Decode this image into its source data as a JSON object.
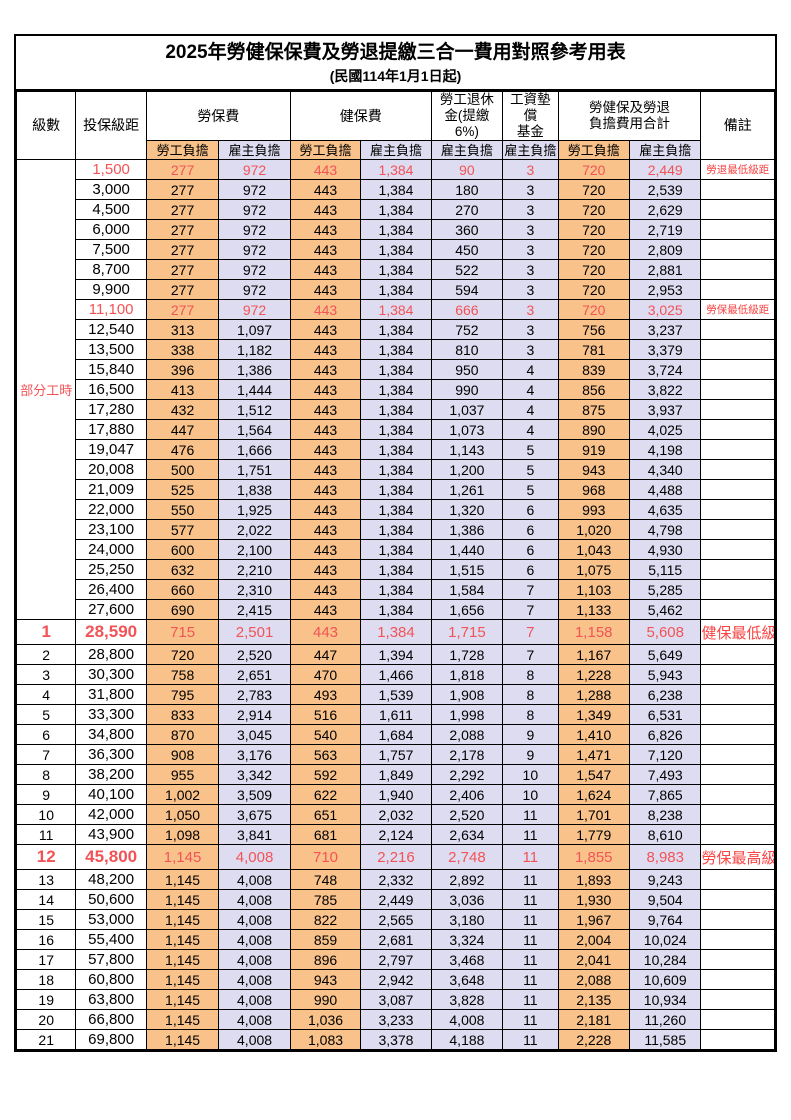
{
  "title": "2025年勞健保保費及勞退提繳三合一費用對照參考用表",
  "subtitle": "(民國114年1月1日起)",
  "colors": {
    "employee_column_bg": "#f9c28a",
    "employer_column_bg": "#dedcf0",
    "highlight_text": "#f25356",
    "remark_text": "#fa4343",
    "border": "#000000"
  },
  "header": {
    "level": "級數",
    "salary_bracket": "投保級距",
    "labor_insurance": "勞保費",
    "health_insurance": "健保費",
    "pension": "勞工退休\n金(提繳6%)",
    "wage_arrears_fund": "工資墊償\n基金",
    "total": "勞健保及勞退\n負擔費用合計",
    "remark": "備註",
    "employee_share": "勞工負擔",
    "employer_share": "雇主負擔"
  },
  "group_label": "部分工時",
  "rows": [
    {
      "level": null,
      "salary": "1,500",
      "values": [
        "277",
        "972",
        "443",
        "1,384",
        "90",
        "3",
        "720",
        "2,449"
      ],
      "remark": "勞退最低級距",
      "red": true,
      "emphasis": false
    },
    {
      "level": null,
      "salary": "3,000",
      "values": [
        "277",
        "972",
        "443",
        "1,384",
        "180",
        "3",
        "720",
        "2,539"
      ],
      "remark": "",
      "red": false,
      "emphasis": false
    },
    {
      "level": null,
      "salary": "4,500",
      "values": [
        "277",
        "972",
        "443",
        "1,384",
        "270",
        "3",
        "720",
        "2,629"
      ],
      "remark": "",
      "red": false,
      "emphasis": false
    },
    {
      "level": null,
      "salary": "6,000",
      "values": [
        "277",
        "972",
        "443",
        "1,384",
        "360",
        "3",
        "720",
        "2,719"
      ],
      "remark": "",
      "red": false,
      "emphasis": false
    },
    {
      "level": null,
      "salary": "7,500",
      "values": [
        "277",
        "972",
        "443",
        "1,384",
        "450",
        "3",
        "720",
        "2,809"
      ],
      "remark": "",
      "red": false,
      "emphasis": false
    },
    {
      "level": null,
      "salary": "8,700",
      "values": [
        "277",
        "972",
        "443",
        "1,384",
        "522",
        "3",
        "720",
        "2,881"
      ],
      "remark": "",
      "red": false,
      "emphasis": false
    },
    {
      "level": null,
      "salary": "9,900",
      "values": [
        "277",
        "972",
        "443",
        "1,384",
        "594",
        "3",
        "720",
        "2,953"
      ],
      "remark": "",
      "red": false,
      "emphasis": false
    },
    {
      "level": null,
      "salary": "11,100",
      "values": [
        "277",
        "972",
        "443",
        "1,384",
        "666",
        "3",
        "720",
        "3,025"
      ],
      "remark": "勞保最低級距",
      "red": true,
      "emphasis": false
    },
    {
      "level": null,
      "salary": "12,540",
      "values": [
        "313",
        "1,097",
        "443",
        "1,384",
        "752",
        "3",
        "756",
        "3,237"
      ],
      "remark": "",
      "red": false,
      "emphasis": false
    },
    {
      "level": null,
      "salary": "13,500",
      "values": [
        "338",
        "1,182",
        "443",
        "1,384",
        "810",
        "3",
        "781",
        "3,379"
      ],
      "remark": "",
      "red": false,
      "emphasis": false
    },
    {
      "level": null,
      "salary": "15,840",
      "values": [
        "396",
        "1,386",
        "443",
        "1,384",
        "950",
        "4",
        "839",
        "3,724"
      ],
      "remark": "",
      "red": false,
      "emphasis": false
    },
    {
      "level": null,
      "salary": "16,500",
      "values": [
        "413",
        "1,444",
        "443",
        "1,384",
        "990",
        "4",
        "856",
        "3,822"
      ],
      "remark": "",
      "red": false,
      "emphasis": false
    },
    {
      "level": null,
      "salary": "17,280",
      "values": [
        "432",
        "1,512",
        "443",
        "1,384",
        "1,037",
        "4",
        "875",
        "3,937"
      ],
      "remark": "",
      "red": false,
      "emphasis": false
    },
    {
      "level": null,
      "salary": "17,880",
      "values": [
        "447",
        "1,564",
        "443",
        "1,384",
        "1,073",
        "4",
        "890",
        "4,025"
      ],
      "remark": "",
      "red": false,
      "emphasis": false
    },
    {
      "level": null,
      "salary": "19,047",
      "values": [
        "476",
        "1,666",
        "443",
        "1,384",
        "1,143",
        "5",
        "919",
        "4,198"
      ],
      "remark": "",
      "red": false,
      "emphasis": false
    },
    {
      "level": null,
      "salary": "20,008",
      "values": [
        "500",
        "1,751",
        "443",
        "1,384",
        "1,200",
        "5",
        "943",
        "4,340"
      ],
      "remark": "",
      "red": false,
      "emphasis": false
    },
    {
      "level": null,
      "salary": "21,009",
      "values": [
        "525",
        "1,838",
        "443",
        "1,384",
        "1,261",
        "5",
        "968",
        "4,488"
      ],
      "remark": "",
      "red": false,
      "emphasis": false
    },
    {
      "level": null,
      "salary": "22,000",
      "values": [
        "550",
        "1,925",
        "443",
        "1,384",
        "1,320",
        "6",
        "993",
        "4,635"
      ],
      "remark": "",
      "red": false,
      "emphasis": false
    },
    {
      "level": null,
      "salary": "23,100",
      "values": [
        "577",
        "2,022",
        "443",
        "1,384",
        "1,386",
        "6",
        "1,020",
        "4,798"
      ],
      "remark": "",
      "red": false,
      "emphasis": false
    },
    {
      "level": null,
      "salary": "24,000",
      "values": [
        "600",
        "2,100",
        "443",
        "1,384",
        "1,440",
        "6",
        "1,043",
        "4,930"
      ],
      "remark": "",
      "red": false,
      "emphasis": false
    },
    {
      "level": null,
      "salary": "25,250",
      "values": [
        "632",
        "2,210",
        "443",
        "1,384",
        "1,515",
        "6",
        "1,075",
        "5,115"
      ],
      "remark": "",
      "red": false,
      "emphasis": false
    },
    {
      "level": null,
      "salary": "26,400",
      "values": [
        "660",
        "2,310",
        "443",
        "1,384",
        "1,584",
        "7",
        "1,103",
        "5,285"
      ],
      "remark": "",
      "red": false,
      "emphasis": false
    },
    {
      "level": null,
      "salary": "27,600",
      "values": [
        "690",
        "2,415",
        "443",
        "1,384",
        "1,656",
        "7",
        "1,133",
        "5,462"
      ],
      "remark": "",
      "red": false,
      "emphasis": false
    },
    {
      "level": "1",
      "salary": "28,590",
      "values": [
        "715",
        "2,501",
        "443",
        "1,384",
        "1,715",
        "7",
        "1,158",
        "5,608"
      ],
      "remark": "健保最低級距",
      "red": true,
      "emphasis": true
    },
    {
      "level": "2",
      "salary": "28,800",
      "values": [
        "720",
        "2,520",
        "447",
        "1,394",
        "1,728",
        "7",
        "1,167",
        "5,649"
      ],
      "remark": "",
      "red": false,
      "emphasis": false
    },
    {
      "level": "3",
      "salary": "30,300",
      "values": [
        "758",
        "2,651",
        "470",
        "1,466",
        "1,818",
        "8",
        "1,228",
        "5,943"
      ],
      "remark": "",
      "red": false,
      "emphasis": false
    },
    {
      "level": "4",
      "salary": "31,800",
      "values": [
        "795",
        "2,783",
        "493",
        "1,539",
        "1,908",
        "8",
        "1,288",
        "6,238"
      ],
      "remark": "",
      "red": false,
      "emphasis": false
    },
    {
      "level": "5",
      "salary": "33,300",
      "values": [
        "833",
        "2,914",
        "516",
        "1,611",
        "1,998",
        "8",
        "1,349",
        "6,531"
      ],
      "remark": "",
      "red": false,
      "emphasis": false
    },
    {
      "level": "6",
      "salary": "34,800",
      "values": [
        "870",
        "3,045",
        "540",
        "1,684",
        "2,088",
        "9",
        "1,410",
        "6,826"
      ],
      "remark": "",
      "red": false,
      "emphasis": false
    },
    {
      "level": "7",
      "salary": "36,300",
      "values": [
        "908",
        "3,176",
        "563",
        "1,757",
        "2,178",
        "9",
        "1,471",
        "7,120"
      ],
      "remark": "",
      "red": false,
      "emphasis": false
    },
    {
      "level": "8",
      "salary": "38,200",
      "values": [
        "955",
        "3,342",
        "592",
        "1,849",
        "2,292",
        "10",
        "1,547",
        "7,493"
      ],
      "remark": "",
      "red": false,
      "emphasis": false
    },
    {
      "level": "9",
      "salary": "40,100",
      "values": [
        "1,002",
        "3,509",
        "622",
        "1,940",
        "2,406",
        "10",
        "1,624",
        "7,865"
      ],
      "remark": "",
      "red": false,
      "emphasis": false
    },
    {
      "level": "10",
      "salary": "42,000",
      "values": [
        "1,050",
        "3,675",
        "651",
        "2,032",
        "2,520",
        "11",
        "1,701",
        "8,238"
      ],
      "remark": "",
      "red": false,
      "emphasis": false
    },
    {
      "level": "11",
      "salary": "43,900",
      "values": [
        "1,098",
        "3,841",
        "681",
        "2,124",
        "2,634",
        "11",
        "1,779",
        "8,610"
      ],
      "remark": "",
      "red": false,
      "emphasis": false
    },
    {
      "level": "12",
      "salary": "45,800",
      "values": [
        "1,145",
        "4,008",
        "710",
        "2,216",
        "2,748",
        "11",
        "1,855",
        "8,983"
      ],
      "remark": "勞保最高級距",
      "red": true,
      "emphasis": true
    },
    {
      "level": "13",
      "salary": "48,200",
      "values": [
        "1,145",
        "4,008",
        "748",
        "2,332",
        "2,892",
        "11",
        "1,893",
        "9,243"
      ],
      "remark": "",
      "red": false,
      "emphasis": false
    },
    {
      "level": "14",
      "salary": "50,600",
      "values": [
        "1,145",
        "4,008",
        "785",
        "2,449",
        "3,036",
        "11",
        "1,930",
        "9,504"
      ],
      "remark": "",
      "red": false,
      "emphasis": false
    },
    {
      "level": "15",
      "salary": "53,000",
      "values": [
        "1,145",
        "4,008",
        "822",
        "2,565",
        "3,180",
        "11",
        "1,967",
        "9,764"
      ],
      "remark": "",
      "red": false,
      "emphasis": false
    },
    {
      "level": "16",
      "salary": "55,400",
      "values": [
        "1,145",
        "4,008",
        "859",
        "2,681",
        "3,324",
        "11",
        "2,004",
        "10,024"
      ],
      "remark": "",
      "red": false,
      "emphasis": false
    },
    {
      "level": "17",
      "salary": "57,800",
      "values": [
        "1,145",
        "4,008",
        "896",
        "2,797",
        "3,468",
        "11",
        "2,041",
        "10,284"
      ],
      "remark": "",
      "red": false,
      "emphasis": false
    },
    {
      "level": "18",
      "salary": "60,800",
      "values": [
        "1,145",
        "4,008",
        "943",
        "2,942",
        "3,648",
        "11",
        "2,088",
        "10,609"
      ],
      "remark": "",
      "red": false,
      "emphasis": false
    },
    {
      "level": "19",
      "salary": "63,800",
      "values": [
        "1,145",
        "4,008",
        "990",
        "3,087",
        "3,828",
        "11",
        "2,135",
        "10,934"
      ],
      "remark": "",
      "red": false,
      "emphasis": false
    },
    {
      "level": "20",
      "salary": "66,800",
      "values": [
        "1,145",
        "4,008",
        "1,036",
        "3,233",
        "4,008",
        "11",
        "2,181",
        "11,260"
      ],
      "remark": "",
      "red": false,
      "emphasis": false
    },
    {
      "level": "21",
      "salary": "69,800",
      "values": [
        "1,145",
        "4,008",
        "1,083",
        "3,378",
        "4,188",
        "11",
        "2,228",
        "11,585"
      ],
      "remark": "",
      "red": false,
      "emphasis": false
    }
  ],
  "column_semantics": [
    "labor-insurance-employee",
    "labor-insurance-employer",
    "health-insurance-employee",
    "health-insurance-employer",
    "pension-employer",
    "wage-fund-employer",
    "total-employee",
    "total-employer"
  ]
}
